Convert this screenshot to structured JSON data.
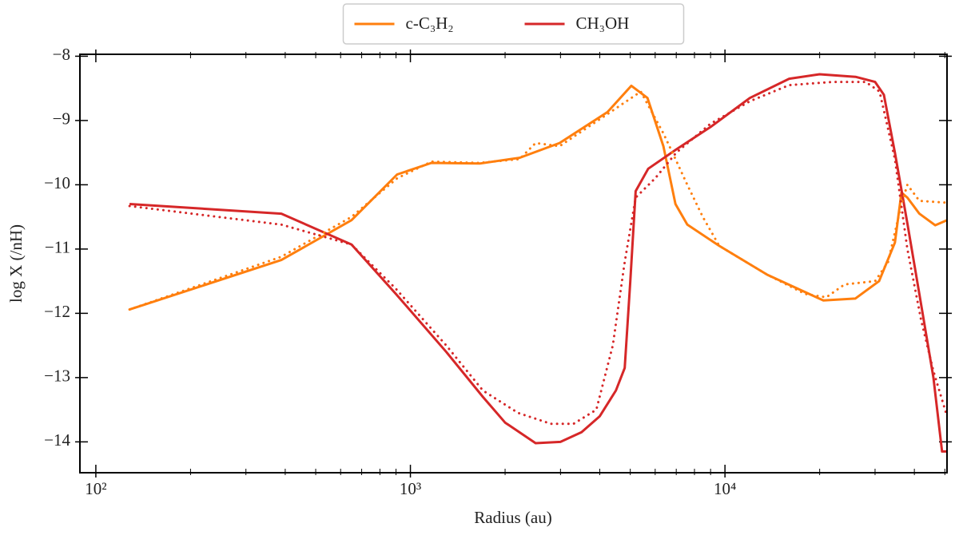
{
  "chart_data": {
    "type": "line",
    "xlabel": "Radius (au)",
    "ylabel": "log X (/nH)",
    "xscale": "log",
    "xlim": [
      89,
      50800
    ],
    "ylim": [
      -14.48,
      -7.97
    ],
    "xticks": [
      {
        "value": 100,
        "label": "10²"
      },
      {
        "value": 1000,
        "label": "10³"
      },
      {
        "value": 10000,
        "label": "10⁴"
      }
    ],
    "xminorticks": [
      200,
      300,
      400,
      500,
      600,
      700,
      800,
      900,
      2000,
      3000,
      4000,
      5000,
      6000,
      7000,
      8000,
      9000,
      20000,
      30000,
      40000,
      50000
    ],
    "yticks": [
      {
        "value": -8,
        "label": "−8"
      },
      {
        "value": -9,
        "label": "−9"
      },
      {
        "value": -10,
        "label": "−10"
      },
      {
        "value": -11,
        "label": "−11"
      },
      {
        "value": -12,
        "label": "−12"
      },
      {
        "value": -13,
        "label": "−13"
      },
      {
        "value": -14,
        "label": "−14"
      }
    ],
    "legend": "upper center",
    "series": [
      {
        "name": "c-C₃H₂",
        "color": "#ff7f0e",
        "linestyle": "solid",
        "x": [
          128,
          389,
          650,
          907,
          1167,
          1660,
          2224,
          2980,
          4230,
          5040,
          5670,
          6370,
          6960,
          7590,
          9590,
          13640,
          20550,
          25950,
          30900,
          34700,
          36400,
          38000,
          41500,
          46600,
          50800
        ],
        "values": [
          -11.94,
          -11.17,
          -10.55,
          -9.84,
          -9.66,
          -9.67,
          -9.58,
          -9.35,
          -8.87,
          -8.46,
          -8.65,
          -9.4,
          -10.3,
          -10.62,
          -10.95,
          -11.4,
          -11.8,
          -11.77,
          -11.5,
          -10.9,
          -10.12,
          -10.2,
          -10.45,
          -10.63,
          -10.55
        ]
      },
      {
        "name": "CH₃OH",
        "color": "#d62728",
        "linestyle": "solid",
        "x": [
          128,
          389,
          650,
          900,
          1300,
          1700,
          2000,
          2500,
          3000,
          3500,
          4000,
          4500,
          4800,
          5000,
          5200,
          5700,
          7000,
          9000,
          12000,
          16000,
          20000,
          26000,
          30000,
          32000,
          34700,
          38000,
          41500,
          46000,
          49000,
          50800
        ],
        "values": [
          -10.3,
          -10.45,
          -10.93,
          -11.7,
          -12.6,
          -13.3,
          -13.7,
          -14.02,
          -14.0,
          -13.85,
          -13.6,
          -13.2,
          -12.85,
          -11.5,
          -10.1,
          -9.75,
          -9.45,
          -9.1,
          -8.65,
          -8.35,
          -8.28,
          -8.32,
          -8.4,
          -8.6,
          -9.5,
          -10.6,
          -11.7,
          -13.0,
          -14.15,
          -14.15
        ]
      },
      {
        "color": "#ff7f0e",
        "linestyle": "dotted",
        "x": [
          128,
          389,
          650,
          907,
          1167,
          1660,
          2224,
          2500,
          2980,
          4230,
          5400,
          6370,
          6960,
          7590,
          8500,
          9590,
          13640,
          18000,
          21000,
          24000,
          30000,
          33000,
          36400,
          38000,
          41500,
          50800
        ],
        "values": [
          -11.94,
          -11.12,
          -10.5,
          -9.9,
          -9.64,
          -9.66,
          -9.6,
          -9.35,
          -9.4,
          -8.9,
          -8.55,
          -9.2,
          -9.6,
          -10.0,
          -10.5,
          -10.95,
          -11.4,
          -11.7,
          -11.75,
          -11.55,
          -11.5,
          -11.2,
          -10.3,
          -10.0,
          -10.25,
          -10.28
        ]
      },
      {
        "color": "#d62728",
        "linestyle": "dotted",
        "x": [
          128,
          389,
          650,
          900,
          1300,
          1700,
          2200,
          2800,
          3300,
          3900,
          4400,
          4800,
          5200,
          6000,
          7000,
          9000,
          12000,
          16000,
          22000,
          28000,
          31000,
          34700,
          38000,
          42000,
          46000,
          50800
        ],
        "values": [
          -10.33,
          -10.62,
          -10.93,
          -11.62,
          -12.5,
          -13.2,
          -13.55,
          -13.72,
          -13.72,
          -13.5,
          -12.5,
          -11.2,
          -10.2,
          -9.9,
          -9.5,
          -9.05,
          -8.7,
          -8.45,
          -8.4,
          -8.4,
          -8.55,
          -9.6,
          -11.0,
          -12.1,
          -12.9,
          -13.6
        ]
      }
    ]
  }
}
